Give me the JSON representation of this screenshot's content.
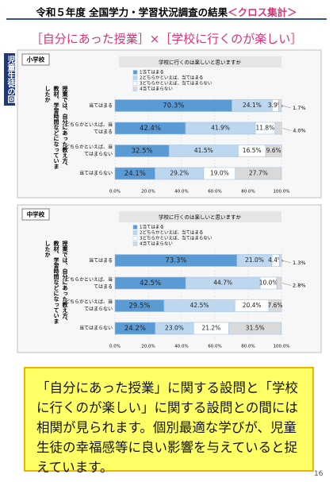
{
  "header": {
    "title": "令和５年度 全国学力・学習状況調査の結果",
    "suffix": "＜クロス集計＞"
  },
  "subtitle": "［自分にあった授業］×［学校に行くのが楽しい］",
  "side_label": "児童生徒の回答",
  "chart_data": [
    {
      "type": "stacked_barh",
      "section": "小学校",
      "title": "学校に行くのは楽しいと思いますか",
      "ylabel": "授業では、自分にあった教え方、教材、学習時間などになっていましたか",
      "categories": [
        "当てはまる",
        "どちらかといえば、当てはまる",
        "どちらかといえば、当てはまらない",
        "当てはまらない"
      ],
      "series": [
        {
          "name": "1当てはまる",
          "color": "#5b9bd5",
          "values": [
            70.3,
            42.4,
            32.5,
            24.1
          ],
          "value_labels": [
            "70.3%",
            "42.4%",
            "32.5%",
            "24.1%"
          ]
        },
        {
          "name": "2どちらかといえば、当てはまる",
          "color": "#bdd7ee",
          "values": [
            24.1,
            41.9,
            41.5,
            29.2
          ],
          "value_labels": [
            "24.1%",
            "41.9%",
            "41.5%",
            "29.2%"
          ]
        },
        {
          "name": "3どちらかといえば、当てはまらない",
          "color": "#ffffff",
          "values": [
            3.9,
            11.8,
            16.5,
            19.0
          ],
          "value_labels": [
            "3.9%",
            "11.8%",
            "16.5%",
            "19.0%"
          ]
        },
        {
          "name": "4当てはまらない",
          "color": "#d9d9d9",
          "values": [
            1.7,
            4.0,
            9.6,
            27.7
          ],
          "value_labels": [
            "1.7%",
            "4.0%",
            "9.6%",
            "27.7%"
          ]
        }
      ],
      "xlim": [
        0,
        100
      ],
      "xticks": [
        {
          "value": 0,
          "label": "0.0%"
        },
        {
          "value": 20,
          "label": "20.0%"
        },
        {
          "value": 40,
          "label": "40.0%"
        },
        {
          "value": 60,
          "label": "60.0%"
        },
        {
          "value": 80,
          "label": "80.0%"
        },
        {
          "value": 100,
          "label": "100.0%"
        }
      ],
      "grid": true
    },
    {
      "type": "stacked_barh",
      "section": "中学校",
      "title": "学校に行くのは楽しいと思いますか",
      "ylabel": "授業では、自分にあった教え方、教材、学習時間などになっていましたか",
      "categories": [
        "当てはまる",
        "どちらかといえば、当てはまる",
        "どちらかといえば、当てはまらない",
        "当てはまらない"
      ],
      "series": [
        {
          "name": "1当てはまる",
          "color": "#5b9bd5",
          "values": [
            73.3,
            42.5,
            29.5,
            24.2
          ],
          "value_labels": [
            "73.3%",
            "42.5%",
            "29.5%",
            "24.2%"
          ]
        },
        {
          "name": "2どちらかといえば、当てはまる",
          "color": "#bdd7ee",
          "values": [
            21.0,
            44.7,
            42.5,
            23.0
          ],
          "value_labels": [
            "21.0%",
            "44.7%",
            "42.5%",
            "23.0%"
          ]
        },
        {
          "name": "3どちらかといえば、当てはまらない",
          "color": "#ffffff",
          "values": [
            4.4,
            10.0,
            20.4,
            21.2
          ],
          "value_labels": [
            "4.4%",
            "10.0%",
            "20.4%",
            "21.2%"
          ]
        },
        {
          "name": "4当てはまらない",
          "color": "#d9d9d9",
          "values": [
            1.3,
            2.8,
            7.6,
            31.5
          ],
          "value_labels": [
            "1.3%",
            "2.8%",
            "7.6%",
            "31.5%"
          ]
        }
      ],
      "xlim": [
        0,
        100
      ],
      "xticks": [
        {
          "value": 0,
          "label": "0.0%"
        },
        {
          "value": 20,
          "label": "20.0%"
        },
        {
          "value": 40,
          "label": "40.0%"
        },
        {
          "value": 60,
          "label": "60.0%"
        },
        {
          "value": 80,
          "label": "80.0%"
        },
        {
          "value": 100,
          "label": "100.0%"
        }
      ],
      "grid": true
    }
  ],
  "summary": "「自分にあった授業」に関する設問と「学校に行くのが楽しい」に関する設問との間には相関が見られます。個別最適な学びが、児童生徒の幸福感等に良い影響を与えていると捉えています。",
  "page_number": "16"
}
